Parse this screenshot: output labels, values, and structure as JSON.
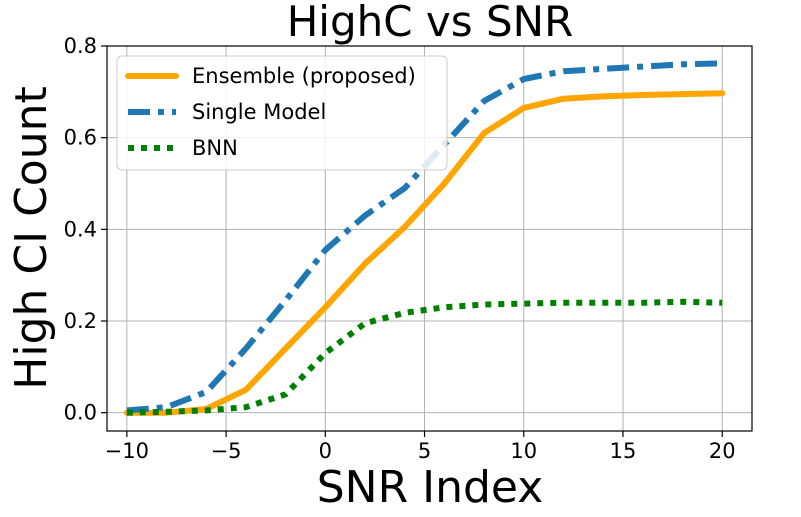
{
  "chart_data": {
    "type": "line",
    "title": "HighC vs SNR",
    "xlabel": "SNR Index",
    "ylabel": "High CI Count",
    "xlim": [
      -11,
      21.5
    ],
    "ylim": [
      -0.04,
      0.8
    ],
    "xticks": [
      -10,
      -5,
      0,
      5,
      10,
      15,
      20
    ],
    "xtick_labels": [
      "−10",
      "−5",
      "0",
      "5",
      "10",
      "15",
      "20"
    ],
    "yticks": [
      0.0,
      0.2,
      0.4,
      0.6,
      0.8
    ],
    "ytick_labels": [
      "0.0",
      "0.2",
      "0.4",
      "0.6",
      "0.8"
    ],
    "grid": true,
    "legend_position": "top-left",
    "x": [
      -10,
      -8,
      -6,
      -4,
      -2,
      0,
      2,
      4,
      6,
      8,
      10,
      12,
      14,
      16,
      18,
      20
    ],
    "series": [
      {
        "name": "Ensemble (proposed)",
        "color": "#ffa500",
        "style": "solid",
        "values": [
          0.0,
          0.0,
          0.008,
          0.05,
          0.14,
          0.23,
          0.325,
          0.405,
          0.5,
          0.61,
          0.665,
          0.685,
          0.69,
          0.693,
          0.695,
          0.697
        ]
      },
      {
        "name": "Single Model",
        "color": "#1f77b4",
        "style": "dashdot",
        "values": [
          0.005,
          0.012,
          0.045,
          0.14,
          0.245,
          0.355,
          0.43,
          0.49,
          0.585,
          0.68,
          0.728,
          0.745,
          0.75,
          0.755,
          0.76,
          0.762
        ]
      },
      {
        "name": "BNN",
        "color": "#008000",
        "style": "dotted",
        "values": [
          0.0,
          0.002,
          0.005,
          0.012,
          0.04,
          0.13,
          0.195,
          0.218,
          0.23,
          0.236,
          0.238,
          0.24,
          0.24,
          0.24,
          0.242,
          0.24
        ]
      }
    ]
  }
}
